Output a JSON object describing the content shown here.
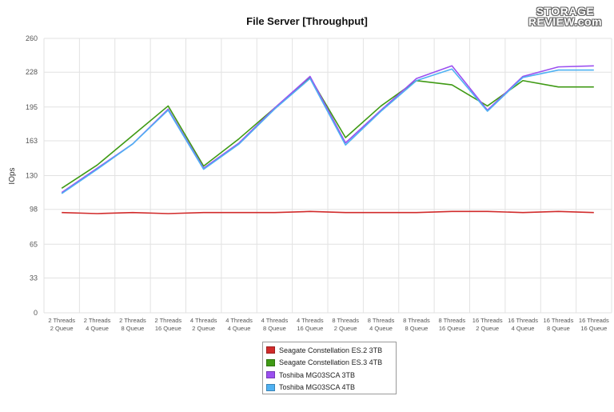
{
  "logo": {
    "line1": "STORAGE",
    "line2": "REVIEW.com"
  },
  "colors": {
    "seagate_es2": "#d12b2b",
    "seagate_es3": "#3f9a14",
    "toshiba_3tb": "#9b4ff0",
    "toshiba_4tb": "#4fb1f2",
    "grid": "#e2e2e2",
    "axis_text": "#555555"
  },
  "chart_data": {
    "type": "line",
    "title": "File Server [Throughput]",
    "xlabel": "",
    "ylabel": "IOps",
    "ylim": [
      0,
      260
    ],
    "yticks": [
      0,
      33,
      65,
      98,
      130,
      163,
      195,
      228,
      260
    ],
    "grid": true,
    "legend_position": "bottom-center",
    "categories": [
      [
        "2 Threads",
        "2 Queue"
      ],
      [
        "2 Threads",
        "4 Queue"
      ],
      [
        "2 Threads",
        "8 Queue"
      ],
      [
        "2 Threads",
        "16 Queue"
      ],
      [
        "4 Threads",
        "2 Queue"
      ],
      [
        "4 Threads",
        "4 Queue"
      ],
      [
        "4 Threads",
        "8 Queue"
      ],
      [
        "4 Threads",
        "16 Queue"
      ],
      [
        "8 Threads",
        "2 Queue"
      ],
      [
        "8 Threads",
        "4 Queue"
      ],
      [
        "8 Threads",
        "8 Queue"
      ],
      [
        "8 Threads",
        "16 Queue"
      ],
      [
        "16 Threads",
        "2 Queue"
      ],
      [
        "16 Threads",
        "4 Queue"
      ],
      [
        "16 Threads",
        "8 Queue"
      ],
      [
        "16 Threads",
        "16 Queue"
      ]
    ],
    "series": [
      {
        "name": "Seagate Constellation ES.2 3TB",
        "color": "#d12b2b",
        "values": [
          95,
          94,
          95,
          94,
          95,
          95,
          95,
          96,
          95,
          95,
          95,
          96,
          96,
          95,
          96,
          95
        ]
      },
      {
        "name": "Seagate Constellation ES.3 4TB",
        "color": "#3f9a14",
        "values": [
          118,
          140,
          168,
          196,
          139,
          165,
          194,
          223,
          166,
          196,
          220,
          216,
          196,
          220,
          214,
          214
        ]
      },
      {
        "name": "Toshiba MG03SCA 3TB",
        "color": "#9b4ff0",
        "values": [
          114,
          137,
          160,
          193,
          137,
          161,
          194,
          224,
          161,
          192,
          222,
          234,
          192,
          224,
          233,
          234
        ]
      },
      {
        "name": "Toshiba MG03SCA 4TB",
        "color": "#4fb1f2",
        "values": [
          113,
          136,
          160,
          192,
          136,
          160,
          193,
          222,
          159,
          191,
          220,
          231,
          191,
          223,
          230,
          230
        ]
      }
    ]
  }
}
